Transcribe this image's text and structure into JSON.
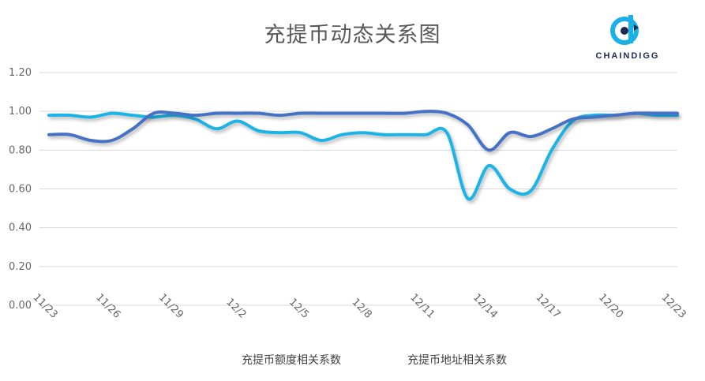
{
  "chart_data": {
    "type": "line",
    "title": "充提币动态关系图",
    "xlabel": "",
    "ylabel": "",
    "ylim": [
      0,
      1.2
    ],
    "yticks": [
      "0.00",
      "0.20",
      "0.40",
      "0.60",
      "0.80",
      "1.00",
      "1.20"
    ],
    "xtick_labels": [
      "11/23",
      "11/26",
      "11/29",
      "12/2",
      "12/5",
      "12/8",
      "12/11",
      "12/14",
      "12/17",
      "12/20",
      "12/23"
    ],
    "x": [
      "11/23",
      "11/24",
      "11/25",
      "11/26",
      "11/27",
      "11/28",
      "11/29",
      "11/30",
      "12/1",
      "12/2",
      "12/3",
      "12/4",
      "12/5",
      "12/6",
      "12/7",
      "12/8",
      "12/9",
      "12/10",
      "12/11",
      "12/12",
      "12/13",
      "12/14",
      "12/15",
      "12/16",
      "12/17",
      "12/18",
      "12/19",
      "12/20",
      "12/21",
      "12/22",
      "12/23"
    ],
    "grid": "horizontal",
    "legend_position": "bottom",
    "series": [
      {
        "name": "充提币额度相关系数",
        "color": "#4472c4",
        "values": [
          0.88,
          0.88,
          0.85,
          0.85,
          0.91,
          0.99,
          0.99,
          0.98,
          0.99,
          0.99,
          0.99,
          0.98,
          0.99,
          0.99,
          0.99,
          0.99,
          0.99,
          0.99,
          1.0,
          0.99,
          0.93,
          0.8,
          0.89,
          0.87,
          0.91,
          0.96,
          0.97,
          0.98,
          0.99,
          0.99,
          0.99
        ]
      },
      {
        "name": "充提币地址相关系数",
        "color": "#1eb3e6",
        "values": [
          0.98,
          0.98,
          0.97,
          0.99,
          0.98,
          0.97,
          0.98,
          0.96,
          0.91,
          0.95,
          0.9,
          0.89,
          0.89,
          0.85,
          0.88,
          0.89,
          0.88,
          0.88,
          0.88,
          0.89,
          0.55,
          0.72,
          0.6,
          0.59,
          0.8,
          0.95,
          0.98,
          0.98,
          0.99,
          0.98,
          0.98
        ]
      }
    ]
  },
  "logo": {
    "text": "CHAINDIGG"
  }
}
